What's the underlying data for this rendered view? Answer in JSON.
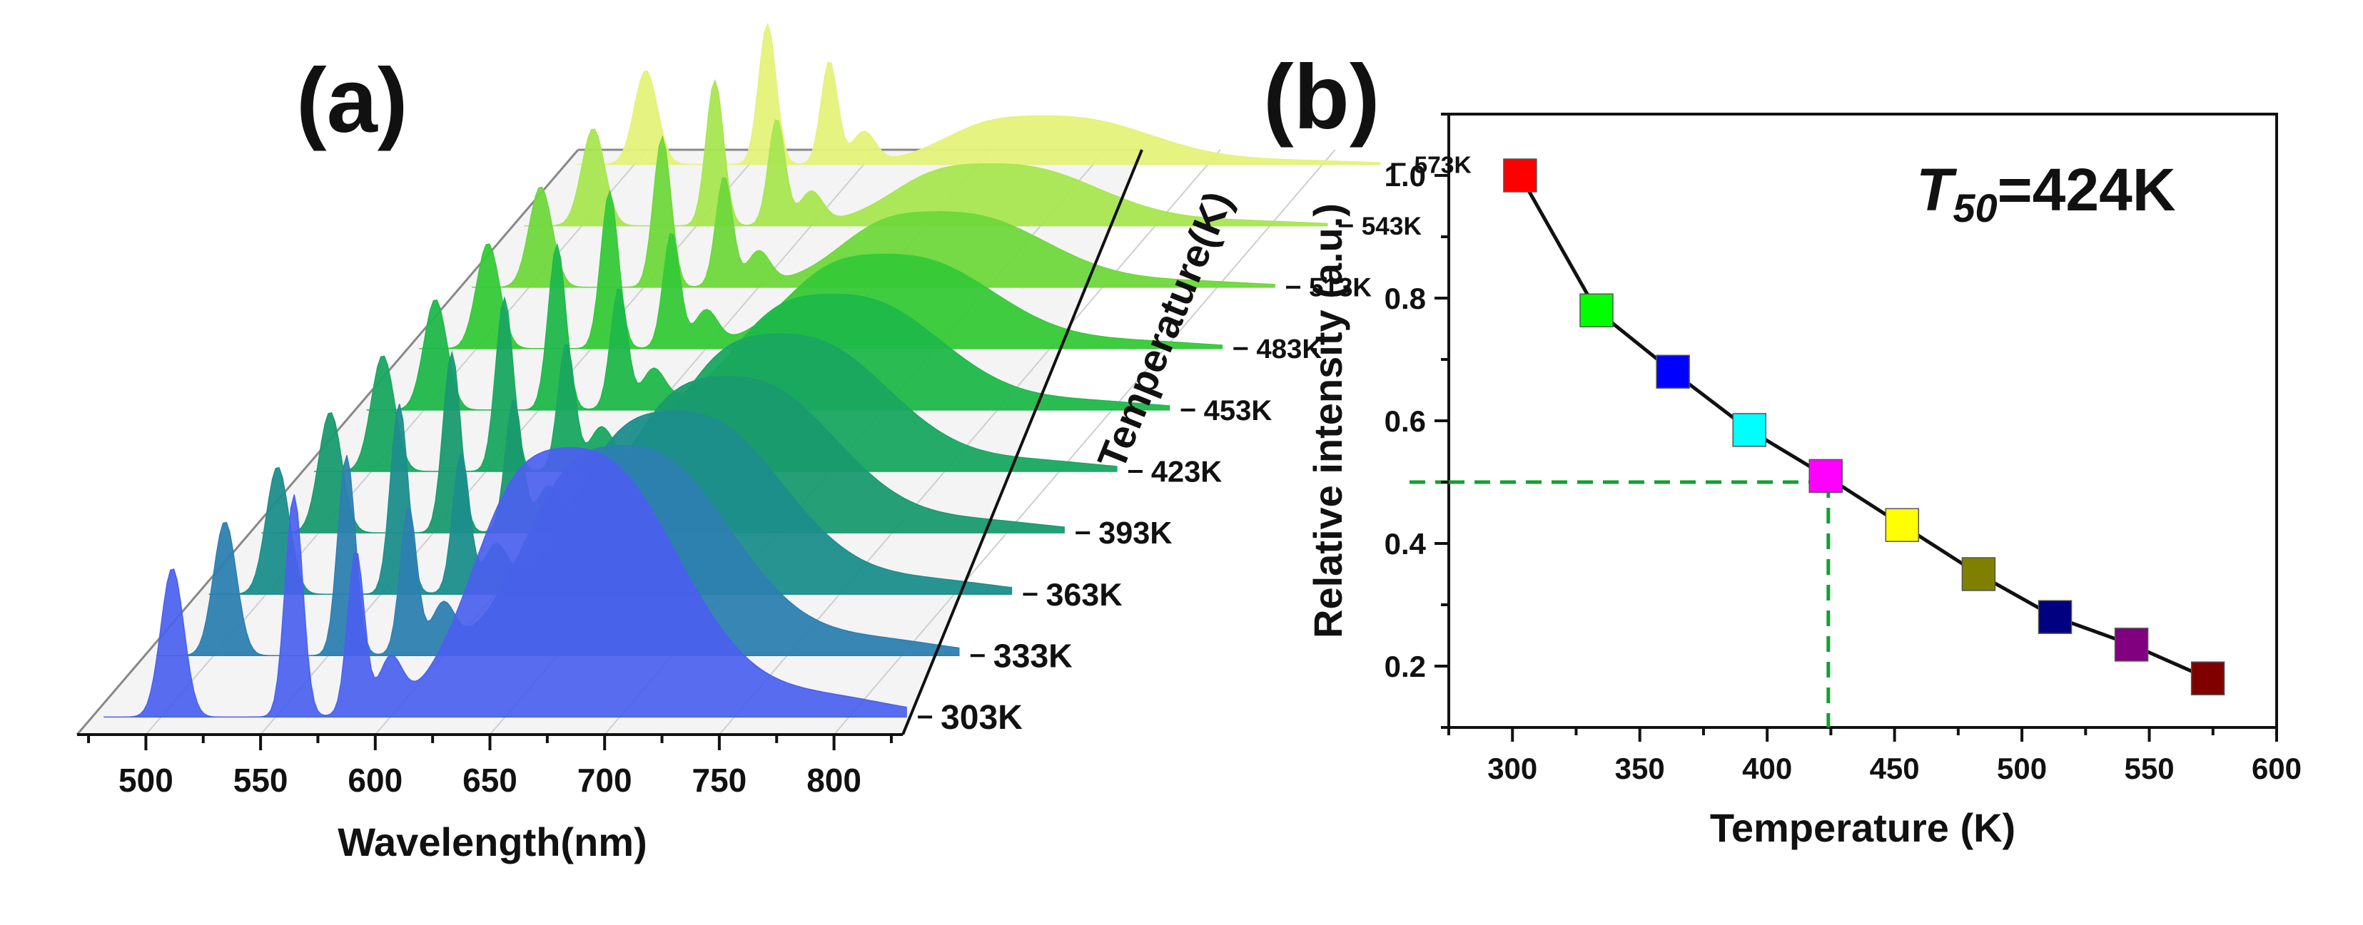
{
  "panel_a": {
    "label": "(a)",
    "xlabel": "Wavelength(nm)",
    "zlabel": "Temperature(K)",
    "xticks": [
      "500",
      "550",
      "600",
      "650",
      "700",
      "750",
      "800"
    ],
    "temperatures": [
      "303K",
      "333K",
      "363K",
      "393K",
      "423K",
      "453K",
      "483K",
      "513K",
      "543K",
      "573K"
    ]
  },
  "panel_b": {
    "label": "(b)",
    "annotation": {
      "symbol": "T",
      "subscript": "50",
      "value": "=424K"
    },
    "xticks": [
      "300",
      "350",
      "400",
      "450",
      "500",
      "550",
      "600"
    ],
    "yticks": [
      "0.2",
      "0.4",
      "0.6",
      "0.8",
      "1.0"
    ]
  },
  "chart_data": [
    {
      "type": "area",
      "title": "",
      "xlabel": "Wavelength(nm)",
      "zlabel": "Temperature(K)",
      "xlim": [
        470,
        830
      ],
      "z_categories": [
        "303K",
        "333K",
        "363K",
        "393K",
        "423K",
        "453K",
        "483K",
        "513K",
        "543K",
        "573K"
      ],
      "relative_peak_height": [
        1.0,
        0.78,
        0.68,
        0.58,
        0.51,
        0.43,
        0.35,
        0.28,
        0.23,
        0.18
      ],
      "broad_band_center_nm": 690,
      "sharp_peaks_nm": [
        505,
        558,
        585,
        600
      ],
      "colors": [
        "#4a60ee",
        "#2d7fb0",
        "#1c8e8c",
        "#199a6f",
        "#19a760",
        "#1fb84a",
        "#36c937",
        "#6ed83b",
        "#a8e650",
        "#e4f27a"
      ]
    },
    {
      "type": "scatter",
      "title": "",
      "xlabel": "Temperature (K)",
      "ylabel": "Relative intensity (a.u.)",
      "xlim": [
        275,
        600
      ],
      "ylim": [
        0.1,
        1.1
      ],
      "x": [
        303,
        333,
        363,
        393,
        423,
        453,
        483,
        513,
        543,
        573
      ],
      "y": [
        1.0,
        0.78,
        0.68,
        0.585,
        0.51,
        0.43,
        0.35,
        0.28,
        0.235,
        0.18
      ],
      "marker_colors": [
        "#ff0000",
        "#00ff00",
        "#0000ff",
        "#00ffff",
        "#ff00ff",
        "#ffff00",
        "#808000",
        "#000080",
        "#800080",
        "#800000"
      ],
      "guide": {
        "x": 424,
        "y": 0.5,
        "color": "#14a032"
      }
    }
  ]
}
